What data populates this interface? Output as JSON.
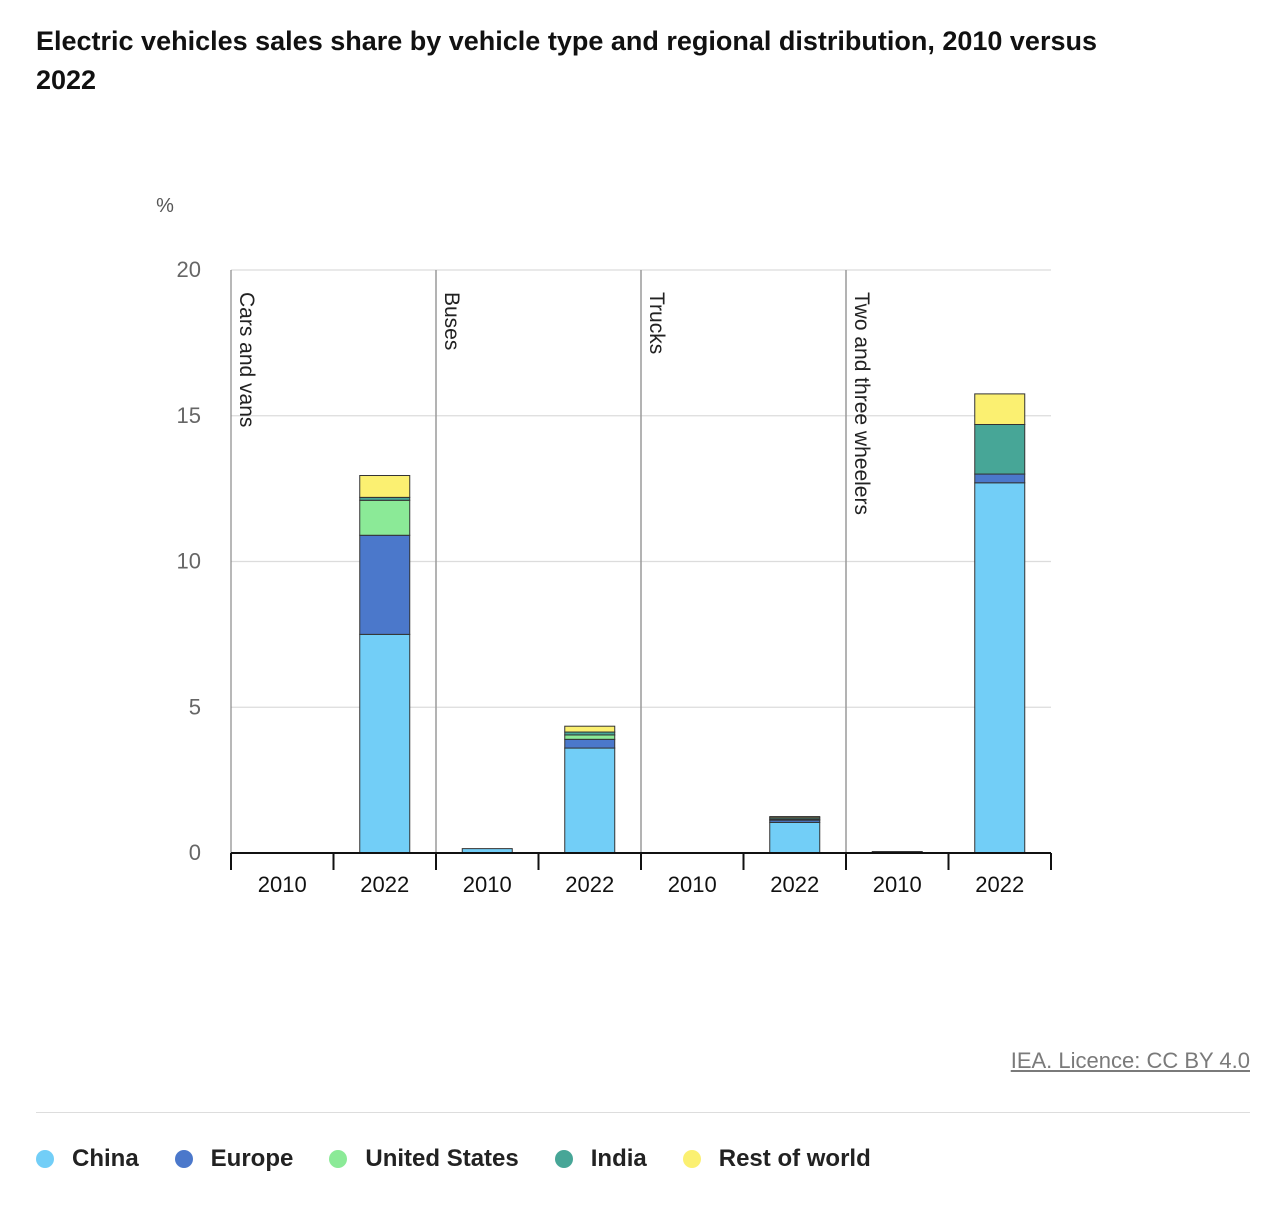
{
  "title": "Electric vehicles sales share by vehicle type and regional distribution, 2010 versus 2022",
  "licence": "IEA. Licence: CC BY 4.0",
  "colors": {
    "China": "#72cef7",
    "Europe": "#4b78cb",
    "United States": "#8bea97",
    "India": "#47a697",
    "Rest of world": "#fbf071",
    "grid": "#dcdcdc",
    "separator": "#9a9a9a"
  },
  "chart_data": {
    "type": "bar",
    "stacked": true,
    "ylabel": "%",
    "xlabel": "",
    "ylim": [
      0,
      20
    ],
    "yticks": [
      0,
      5,
      10,
      15,
      20
    ],
    "grid": true,
    "legend_position": "bottom",
    "groups": [
      "Cars and vans",
      "Buses",
      "Trucks",
      "Two and three wheelers"
    ],
    "categories": [
      "2010",
      "2022",
      "2010",
      "2022",
      "2010",
      "2022",
      "2010",
      "2022"
    ],
    "category_groups": [
      0,
      0,
      1,
      1,
      2,
      2,
      3,
      3
    ],
    "series": [
      {
        "name": "China",
        "values": [
          0,
          7.5,
          0.15,
          3.6,
          0,
          1.05,
          0.05,
          12.7
        ]
      },
      {
        "name": "Europe",
        "values": [
          0,
          3.4,
          0,
          0.3,
          0,
          0.08,
          0,
          0.3
        ]
      },
      {
        "name": "United States",
        "values": [
          0,
          1.2,
          0,
          0.15,
          0,
          0.03,
          0,
          0
        ]
      },
      {
        "name": "India",
        "values": [
          0,
          0.1,
          0,
          0.1,
          0,
          0.05,
          0,
          1.7
        ]
      },
      {
        "name": "Rest of world",
        "values": [
          0,
          0.75,
          0,
          0.2,
          0,
          0.04,
          0,
          1.05
        ]
      }
    ]
  }
}
